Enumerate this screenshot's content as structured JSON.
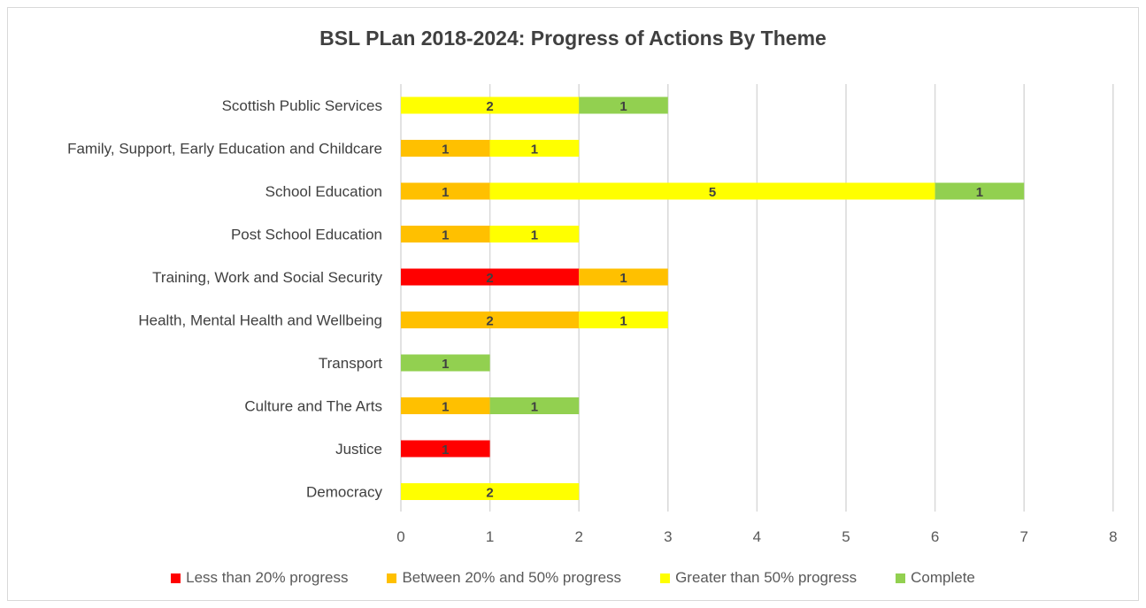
{
  "chart_data": {
    "type": "bar",
    "orientation": "horizontal",
    "stacked": true,
    "title": "BSL PLan 2018-2024: Progress of Actions By Theme",
    "categories": [
      "Scottish Public Services",
      "Family, Support, Early Education and Childcare",
      "School Education",
      "Post School Education",
      "Training, Work and Social Security",
      "Health, Mental Health and Wellbeing",
      "Transport",
      "Culture and The Arts",
      "Justice",
      "Democracy"
    ],
    "series": [
      {
        "name": "Less than 20% progress",
        "color": "#ff0000",
        "values": [
          0,
          0,
          0,
          0,
          2,
          0,
          0,
          0,
          1,
          0
        ]
      },
      {
        "name": "Between 20% and 50% progress",
        "color": "#ffc000",
        "values": [
          0,
          1,
          1,
          1,
          1,
          2,
          0,
          1,
          0,
          0
        ]
      },
      {
        "name": "Greater than 50% progress",
        "color": "#ffff00",
        "values": [
          2,
          1,
          5,
          1,
          0,
          1,
          0,
          0,
          0,
          2
        ]
      },
      {
        "name": "Complete",
        "color": "#92d050",
        "values": [
          1,
          0,
          1,
          0,
          0,
          0,
          1,
          1,
          0,
          0
        ]
      }
    ],
    "xlim": [
      0,
      8
    ],
    "xticks": [
      0,
      1,
      2,
      3,
      4,
      5,
      6,
      7,
      8
    ],
    "grid": true,
    "legend_position": "bottom",
    "data_labels": true
  }
}
